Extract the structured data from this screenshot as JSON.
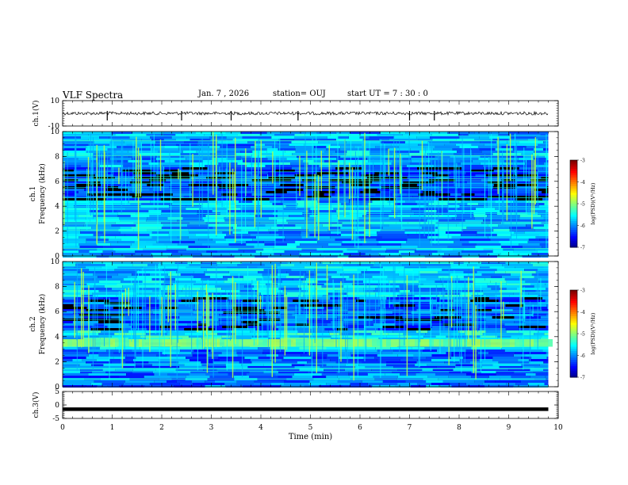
{
  "header": {
    "title": "VLF Spectra",
    "date": "Jan. 7 , 2026",
    "station": "station= OUJ",
    "start": "start UT =  7 : 30 : 0"
  },
  "chart_data": [
    {
      "type": "line",
      "name": "ch1-waveform",
      "ylabel": "ch.1(V)",
      "ylim": [
        -10,
        10
      ],
      "yticks": [
        "10",
        "-10"
      ],
      "baseline": 0,
      "spikes_min": [
        0.9,
        2.4,
        3.4,
        4.75,
        7.0,
        7.5
      ]
    },
    {
      "type": "heatmap",
      "name": "ch1-spectrogram",
      "ylabel_channel": "ch.1",
      "ylabel": "Frequency (kHz)",
      "ylim": [
        0,
        10
      ],
      "yticks": [
        "0",
        "2",
        "4",
        "6",
        "8",
        "10"
      ],
      "colorbar": {
        "label": "log(PSD)(V²/Hz)",
        "range": [
          -7,
          -3
        ],
        "ticks": [
          "-3",
          "-4",
          "-5",
          "-6",
          "-7"
        ]
      }
    },
    {
      "type": "heatmap",
      "name": "ch2-spectrogram",
      "ylabel_channel": "ch.2",
      "ylabel": "Frequency (kHz)",
      "ylim": [
        0,
        10
      ],
      "yticks": [
        "0",
        "2",
        "4",
        "6",
        "8",
        "10"
      ],
      "colorbar": {
        "label": "log(PSD)(V²/Hz)",
        "range": [
          -7,
          -3
        ],
        "ticks": [
          "-3",
          "-4",
          "-5",
          "-6",
          "-7"
        ]
      }
    },
    {
      "type": "line",
      "name": "ch3-waveform",
      "ylabel": "ch.3(V)",
      "ylim": [
        -5,
        5
      ],
      "yticks": [
        "5",
        "0",
        "-5"
      ],
      "baseline": -1.5
    }
  ],
  "xaxis": {
    "label": "Time (min)",
    "range": [
      0,
      10
    ],
    "ticks": [
      "0",
      "1",
      "2",
      "3",
      "4",
      "5",
      "6",
      "7",
      "8",
      "9",
      "10"
    ],
    "data_end": 9.8
  }
}
